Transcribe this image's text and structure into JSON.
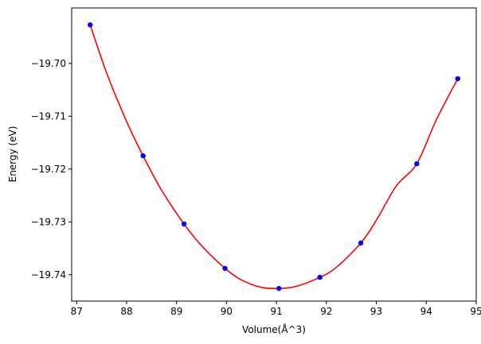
{
  "chart_data": {
    "type": "scatter",
    "title": "",
    "xlabel": "Volume(Å^3)",
    "ylabel": "Energy (eV)",
    "xlim": [
      86.9,
      95.0
    ],
    "ylim": [
      -19.745,
      -19.6895
    ],
    "x_ticks": [
      87,
      88,
      89,
      90,
      91,
      92,
      93,
      94,
      95
    ],
    "y_ticks": [
      -19.74,
      -19.73,
      -19.72,
      -19.71,
      -19.7
    ],
    "x_tick_labels": [
      "87",
      "88",
      "89",
      "90",
      "91",
      "92",
      "93",
      "94",
      "95"
    ],
    "y_tick_labels": [
      "−19.74",
      "−19.73",
      "−19.72",
      "−19.71",
      "−19.70"
    ],
    "grid": false,
    "series": [
      {
        "kind": "scatter",
        "color": "#0000ff",
        "x": [
          87.27,
          88.33,
          89.15,
          89.97,
          91.05,
          91.87,
          92.69,
          93.81,
          94.63
        ],
        "y": [
          -19.6927,
          -19.7175,
          -19.7304,
          -19.7388,
          -19.7426,
          -19.7405,
          -19.734,
          -19.719,
          -19.7029
        ]
      },
      {
        "kind": "line",
        "color": "#ff0000",
        "x": [
          87.27,
          87.6,
          88.0,
          88.33,
          88.7,
          89.15,
          89.5,
          89.97,
          90.3,
          90.7,
          91.05,
          91.4,
          91.87,
          92.2,
          92.69,
          93.0,
          93.4,
          93.81,
          94.2,
          94.63
        ],
        "y": [
          -19.6927,
          -19.7018,
          -19.711,
          -19.7175,
          -19.724,
          -19.7304,
          -19.7345,
          -19.7388,
          -19.741,
          -19.7424,
          -19.7426,
          -19.7422,
          -19.7405,
          -19.7386,
          -19.734,
          -19.7297,
          -19.7232,
          -19.719,
          -19.7107,
          -19.7029
        ]
      }
    ]
  }
}
